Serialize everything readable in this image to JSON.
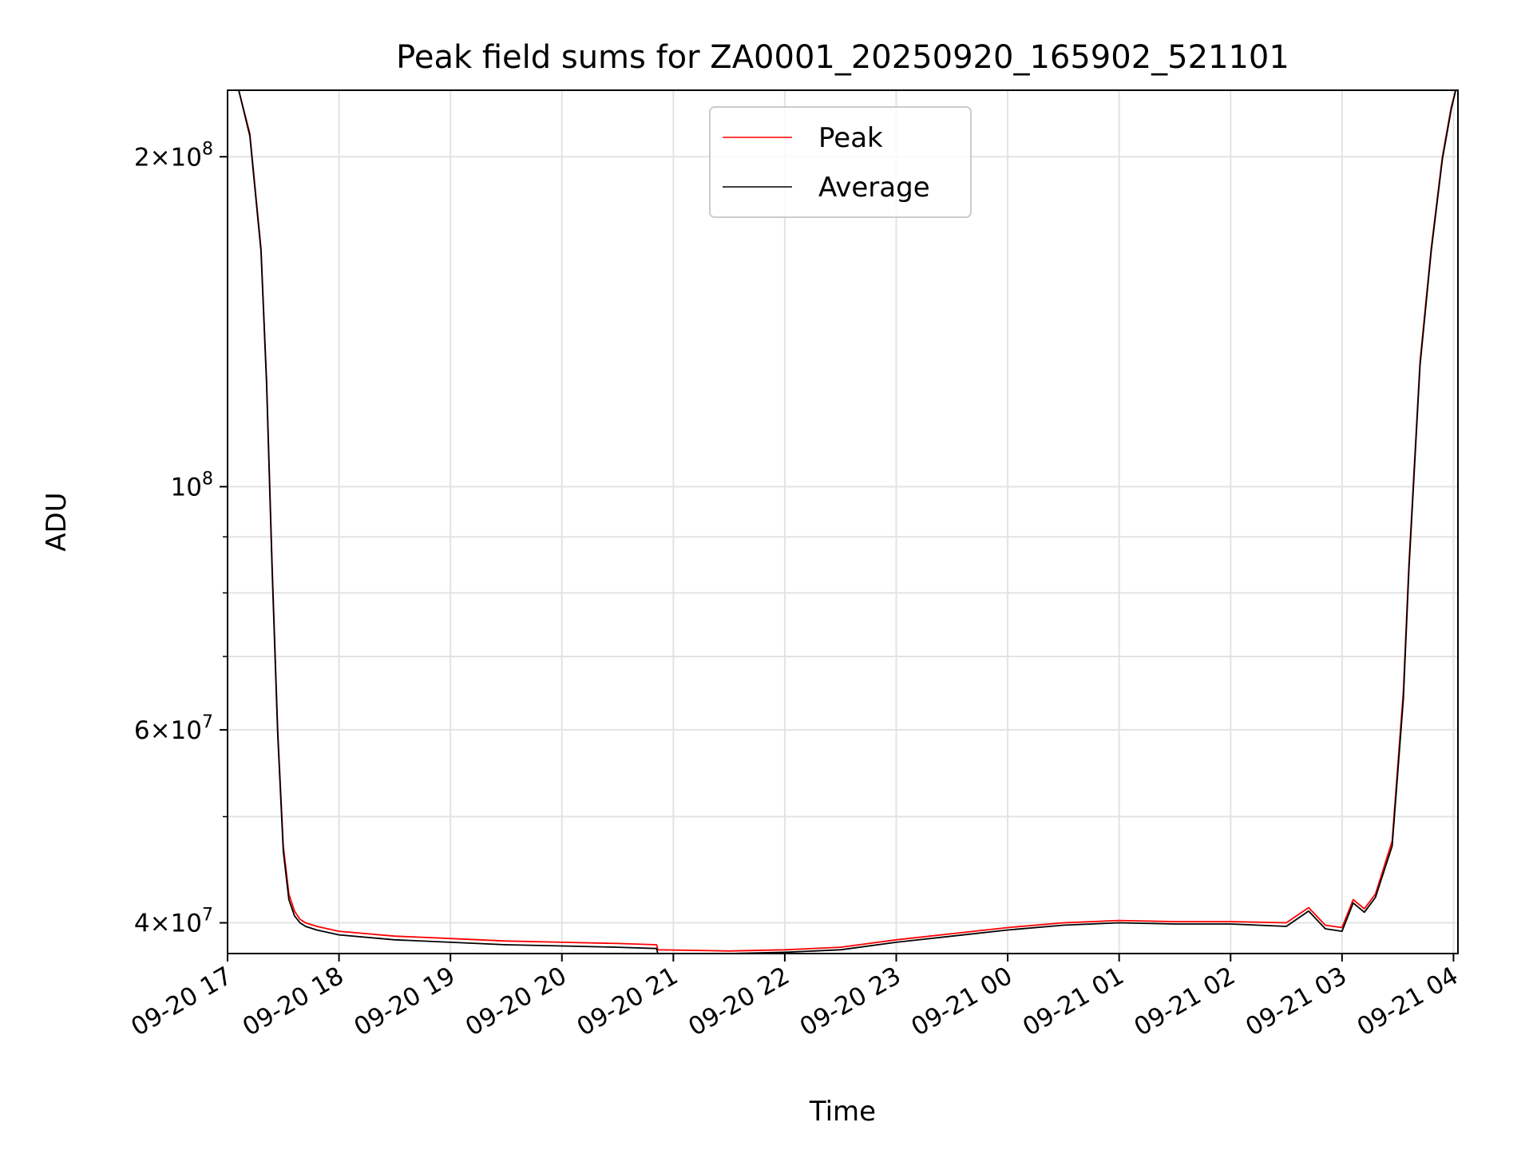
{
  "chart_data": {
    "type": "line",
    "title": "Peak field sums for ZA0001_20250920_165902_521101",
    "xlabel": "Time",
    "ylabel": "ADU",
    "yscale": "log",
    "ylim": [
      37500000,
      230000000
    ],
    "xlim_hours": [
      0,
      11.04
    ],
    "grid": true,
    "legend_location": "upper center",
    "x_ticks": [
      {
        "hour": 0,
        "label": "09-20 17"
      },
      {
        "hour": 1,
        "label": "09-20 18"
      },
      {
        "hour": 2,
        "label": "09-20 19"
      },
      {
        "hour": 3,
        "label": "09-20 20"
      },
      {
        "hour": 4,
        "label": "09-20 21"
      },
      {
        "hour": 5,
        "label": "09-20 22"
      },
      {
        "hour": 6,
        "label": "09-20 23"
      },
      {
        "hour": 7,
        "label": "09-21 00"
      },
      {
        "hour": 8,
        "label": "09-21 01"
      },
      {
        "hour": 9,
        "label": "09-21 02"
      },
      {
        "hour": 10,
        "label": "09-21 03"
      },
      {
        "hour": 11,
        "label": "09-21 04"
      }
    ],
    "y_major_ticks": [
      {
        "value": 40000000,
        "mant": "4",
        "exp": "7"
      },
      {
        "value": 60000000,
        "mant": "6",
        "exp": "7"
      },
      {
        "value": 100000000,
        "mant": "",
        "exp": "8"
      },
      {
        "value": 200000000,
        "mant": "2",
        "exp": "8"
      }
    ],
    "y_minor_ticks": [
      50000000,
      70000000,
      80000000,
      90000000
    ],
    "series": [
      {
        "name": "Peak",
        "color": "#ff0000",
        "x_hours": [
          0.1,
          0.2,
          0.3,
          0.35,
          0.4,
          0.45,
          0.5,
          0.55,
          0.6,
          0.65,
          0.7,
          0.8,
          1.0,
          1.5,
          2.0,
          2.5,
          3.0,
          3.5,
          3.85,
          3.86,
          4.5,
          5.0,
          5.5,
          6.0,
          6.5,
          7.0,
          7.5,
          8.0,
          8.5,
          9.0,
          9.5,
          9.7,
          9.85,
          10.0,
          10.1,
          10.2,
          10.3,
          10.45,
          10.55,
          10.6,
          10.7,
          10.8,
          10.9,
          10.98,
          11.02
        ],
        "values": [
          230000000,
          210000000,
          165000000,
          125000000,
          85000000,
          60000000,
          47000000,
          42500000,
          41000000,
          40300000,
          40000000,
          39700000,
          39300000,
          38900000,
          38700000,
          38500000,
          38400000,
          38300000,
          38200000,
          37800000,
          37700000,
          37800000,
          38000000,
          38600000,
          39100000,
          39600000,
          40000000,
          40200000,
          40100000,
          40100000,
          40000000,
          41300000,
          39800000,
          39600000,
          42000000,
          41200000,
          42500000,
          47500000,
          65000000,
          85000000,
          130000000,
          165000000,
          200000000,
          222000000,
          230000000
        ]
      },
      {
        "name": "Average",
        "color": "#000000",
        "x_hours": [
          0.1,
          0.2,
          0.3,
          0.35,
          0.4,
          0.45,
          0.5,
          0.55,
          0.6,
          0.65,
          0.7,
          0.8,
          1.0,
          1.5,
          2.0,
          2.5,
          3.0,
          3.5,
          3.85,
          3.86,
          4.5,
          5.0,
          5.5,
          6.0,
          6.5,
          7.0,
          7.5,
          8.0,
          8.5,
          9.0,
          9.5,
          9.7,
          9.85,
          10.0,
          10.1,
          10.2,
          10.3,
          10.45,
          10.55,
          10.6,
          10.7,
          10.8,
          10.9,
          10.98,
          11.02
        ],
        "values": [
          230000000,
          209000000,
          164000000,
          124000000,
          84000000,
          59500000,
          46500000,
          42000000,
          40600000,
          40000000,
          39700000,
          39400000,
          39000000,
          38600000,
          38400000,
          38200000,
          38100000,
          38000000,
          37900000,
          37500000,
          37500000,
          37600000,
          37800000,
          38400000,
          38900000,
          39400000,
          39800000,
          40000000,
          39900000,
          39900000,
          39700000,
          41000000,
          39500000,
          39300000,
          41700000,
          40900000,
          42200000,
          47000000,
          64000000,
          84000000,
          129000000,
          164000000,
          199000000,
          221000000,
          230000000
        ]
      }
    ]
  }
}
